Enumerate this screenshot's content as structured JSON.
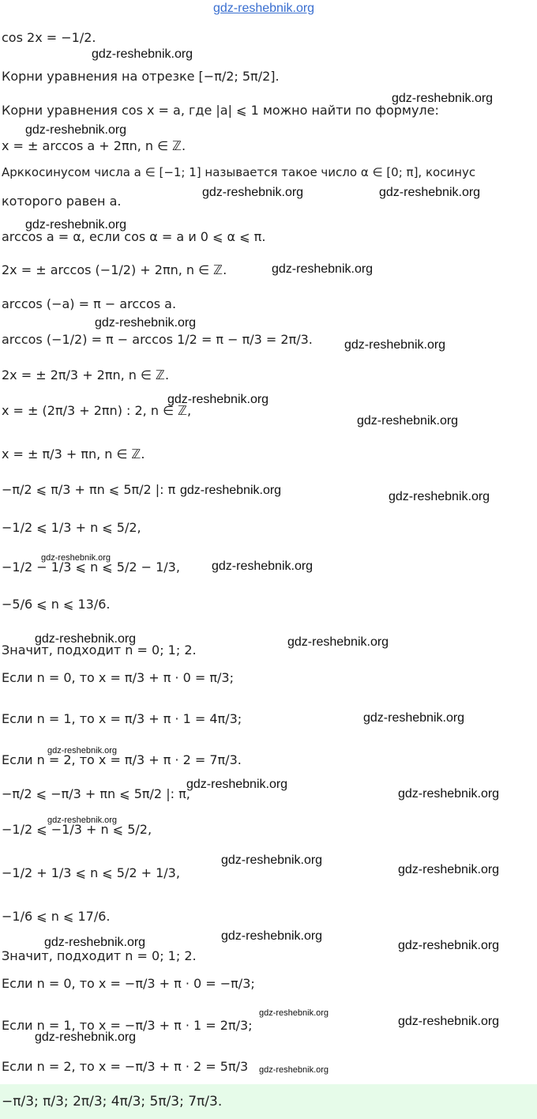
{
  "watermark": "gdz-reshebnik.org",
  "lines": [
    "cos 2x = −1/2.",
    "Корни уравнения на отрезке [−π/2; 5π/2].",
    "Корни уравнения cos x = a, где |a| ⩽ 1 можно найти по формуле:",
    "x = ± arccos a + 2πn,  n ∈ ℤ.",
    "Арккосинусом числа a ∈ [−1; 1] называется такое число α ∈ [0; π], косинус",
    "которого равен a.",
    "arccos a = α, если cos α = a и 0 ⩽ α ⩽ π.",
    "2x = ± arccos (−1/2) + 2πn,  n ∈ ℤ.",
    "arccos (−a) = π − arccos a.",
    "arccos (−1/2) = π − arccos 1/2 = π − π/3 = 2π/3.",
    "2x = ± 2π/3 + 2πn,  n ∈ ℤ.",
    "x = ± (2π/3 + 2πn) : 2,  n ∈ ℤ,",
    "x = ± π/3 + πn,  n ∈ ℤ.",
    "−π/2 ⩽ π/3 + πn ⩽ 5π/2 |: π",
    "−1/2 ⩽ 1/3 + n ⩽ 5/2,",
    "−1/2 − 1/3 ⩽ n ⩽ 5/2 − 1/3,",
    "−5/6 ⩽ n ⩽ 13/6.",
    "Значит, подходит n = 0; 1; 2.",
    "Если n = 0, то x = π/3 + π · 0 = π/3;",
    "Если n = 1, то x = π/3 + π · 1 = 4π/3;",
    "Если n = 2, то x = π/3 + π · 2 = 7π/3.",
    "−π/2 ⩽ −π/3 + πn ⩽ 5π/2 |: π,",
    "−1/2 ⩽ −1/3 + n ⩽ 5/2,",
    "−1/2 + 1/3 ⩽ n ⩽ 5/2 + 1/3,",
    "−1/6 ⩽ n ⩽ 17/6.",
    "Значит, подходит n = 0; 1; 2.",
    "Если n = 0, то x = −π/3 + π · 0 = −π/3;",
    "Если n = 1, то x = −π/3 + π · 1 = 2π/3;",
    "Если n = 2, то x = −π/3 + π · 2 = 5π/3"
  ],
  "answer": "−π/3; π/3; 2π/3; 4π/3; 5π/3; 7π/3."
}
